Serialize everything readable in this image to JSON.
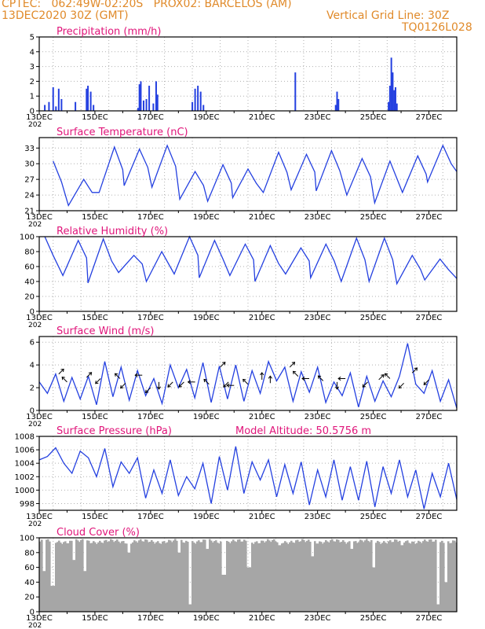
{
  "header": {
    "line1_left": "CPTEC:   062:49W-02:20S   PROX02: BARCELOS (AM)",
    "line2_left": "13DEC2020 30Z (GMT)",
    "line2_right": "Vertical Grid Line: 30Z",
    "line3_right": "TQ0126L028"
  },
  "colors": {
    "header": "#e08a2a",
    "panel_title": "#e0157a",
    "line": "#2440e0",
    "bar": "#2440e0",
    "cloud": "#a6a6a6",
    "grid": "#b0b0b0"
  },
  "x_tick_labels": [
    "13DEC",
    "15DEC",
    "17DEC",
    "19DEC",
    "21DEC",
    "23DEC",
    "25DEC",
    "27DEC"
  ],
  "x_year_label": "202",
  "chart_data": [
    {
      "type": "bar",
      "title": "Precipitation  (mm/h)",
      "ylim": [
        0,
        5
      ],
      "yticks": [
        0,
        1,
        2,
        3,
        4,
        5
      ],
      "x_unit": "days since 13DEC 00Z",
      "bars": [
        [
          0.2,
          0.4
        ],
        [
          0.35,
          0.6
        ],
        [
          0.5,
          1.6
        ],
        [
          0.6,
          0.3
        ],
        [
          0.7,
          1.5
        ],
        [
          0.8,
          0.8
        ],
        [
          1.3,
          0.6
        ],
        [
          1.7,
          1.5
        ],
        [
          1.75,
          1.7
        ],
        [
          1.85,
          1.3
        ],
        [
          1.95,
          0.4
        ],
        [
          3.55,
          0.2
        ],
        [
          3.6,
          1.8
        ],
        [
          3.65,
          2.0
        ],
        [
          3.75,
          0.7
        ],
        [
          3.85,
          0.8
        ],
        [
          3.95,
          1.7
        ],
        [
          4.1,
          0.5
        ],
        [
          4.2,
          2.0
        ],
        [
          4.25,
          1.1
        ],
        [
          5.5,
          0.6
        ],
        [
          5.6,
          1.5
        ],
        [
          5.7,
          1.7
        ],
        [
          5.8,
          1.3
        ],
        [
          5.9,
          0.4
        ],
        [
          9.2,
          2.6
        ],
        [
          10.65,
          0.4
        ],
        [
          10.7,
          1.3
        ],
        [
          10.75,
          0.8
        ],
        [
          12.55,
          0.6
        ],
        [
          12.6,
          1.7
        ],
        [
          12.65,
          3.6
        ],
        [
          12.7,
          2.6
        ],
        [
          12.75,
          1.4
        ],
        [
          12.8,
          1.6
        ],
        [
          12.85,
          0.5
        ]
      ]
    },
    {
      "type": "line",
      "title": "Surface Temperature (nC)",
      "ylim": [
        21,
        35
      ],
      "yticks": [
        21,
        24,
        27,
        30,
        33
      ],
      "period_hours": 24,
      "peak_days": [
        0.5,
        1.6,
        2.7,
        3.6,
        4.6,
        5.6,
        6.6,
        7.5,
        8.6,
        9.6,
        10.5,
        11.6,
        12.6,
        13.6,
        14.5
      ],
      "peaks": [
        30.5,
        27.0,
        33.2,
        32.8,
        33.5,
        28.5,
        29.8,
        29.0,
        32.2,
        31.8,
        32.5,
        31.0,
        30.5,
        31.5,
        33.5
      ],
      "troughs": [
        22.5,
        22.0,
        24.5,
        25.8,
        25.5,
        23.2,
        22.8,
        23.5,
        24.5,
        25.0,
        24.8,
        24.0,
        22.5,
        24.5,
        26.5
      ]
    },
    {
      "type": "line",
      "title": "Relative Humidity  (%)",
      "ylim": [
        0,
        100
      ],
      "yticks": [
        0,
        20,
        40,
        60,
        80,
        100
      ],
      "peak_days": [
        0.2,
        1.4,
        2.3,
        3.4,
        4.4,
        5.4,
        6.3,
        7.4,
        8.3,
        9.4,
        10.3,
        11.4,
        12.4,
        13.4,
        14.4
      ],
      "peaks": [
        100,
        95,
        97,
        75,
        80,
        100,
        95,
        90,
        88,
        85,
        90,
        98,
        98,
        75,
        70
      ],
      "troughs": [
        50,
        48,
        38,
        52,
        40,
        50,
        45,
        48,
        40,
        50,
        45,
        40,
        40,
        37,
        42
      ]
    },
    {
      "type": "line",
      "title": "Surface Wind  (m/s)",
      "ylim": [
        0,
        6.5
      ],
      "yticks": [
        0,
        2,
        4,
        6
      ],
      "values": [
        2.5,
        1.5,
        3.2,
        0.8,
        2.9,
        1.0,
        3.0,
        0.5,
        4.3,
        1.2,
        3.8,
        0.9,
        3.5,
        1.3,
        2.8,
        0.6,
        4.0,
        2.0,
        3.6,
        1.1,
        4.2,
        0.7,
        3.9,
        1.0,
        4.0,
        0.8,
        3.5,
        1.5,
        4.3,
        2.6,
        3.8,
        0.8,
        3.4,
        1.6,
        3.8,
        0.7,
        2.5,
        1.3,
        3.3,
        0.3,
        3.0,
        0.8,
        2.6,
        1.2,
        3.0,
        5.9,
        2.3,
        1.5,
        3.5,
        0.8,
        2.7,
        0.2
      ],
      "arrows": [
        [
          0.7,
          3.2,
          "ne"
        ],
        [
          1.0,
          2.5,
          "nw"
        ],
        [
          1.7,
          2.9,
          "ne"
        ],
        [
          2.2,
          2.8,
          "sw"
        ],
        [
          2.9,
          2.8,
          "nw"
        ],
        [
          3.1,
          2.4,
          "sw"
        ],
        [
          3.7,
          3.1,
          "w"
        ],
        [
          4.0,
          2.0,
          "sw"
        ],
        [
          4.3,
          2.5,
          "s"
        ],
        [
          4.8,
          2.5,
          "sw"
        ],
        [
          5.2,
          2.5,
          "sw"
        ],
        [
          5.6,
          2.5,
          "w"
        ],
        [
          6.1,
          2.3,
          "nw"
        ],
        [
          6.5,
          3.8,
          "ne"
        ],
        [
          6.8,
          2.5,
          "sw"
        ],
        [
          7.0,
          2.2,
          "w"
        ],
        [
          7.5,
          2.3,
          "nw"
        ],
        [
          8.0,
          2.7,
          "n"
        ],
        [
          8.3,
          2.4,
          "n"
        ],
        [
          9.0,
          3.8,
          "ne"
        ],
        [
          9.3,
          3.0,
          "nw"
        ],
        [
          9.7,
          2.8,
          "w"
        ],
        [
          10.2,
          2.6,
          "nw"
        ],
        [
          10.7,
          2.5,
          "s"
        ],
        [
          11.0,
          2.8,
          "w"
        ],
        [
          11.8,
          2.5,
          "sw"
        ],
        [
          12.2,
          2.7,
          "ne"
        ],
        [
          12.6,
          2.8,
          "nw"
        ],
        [
          13.1,
          2.4,
          "sw"
        ],
        [
          13.4,
          3.3,
          "ne"
        ],
        [
          14.0,
          2.7,
          "sw"
        ]
      ]
    },
    {
      "type": "line",
      "title": "Surface Pressure (hPa)",
      "annotation": "Model Altitude: 50.5756  m",
      "ylim": [
        997,
        1008
      ],
      "yticks": [
        998,
        1000,
        1002,
        1004,
        1006,
        1008
      ],
      "values": [
        1004.5,
        1005.0,
        1006.3,
        1004.0,
        1002.5,
        1005.8,
        1004.8,
        1002.0,
        1006.2,
        1000.5,
        1004.2,
        1002.5,
        1004.8,
        998.8,
        1003.0,
        999.5,
        1004.5,
        999.2,
        1002.0,
        1000.2,
        1004.0,
        998.0,
        1005.0,
        1000.0,
        1006.5,
        999.5,
        1004.2,
        1001.5,
        1004.5,
        999.0,
        1003.8,
        999.5,
        1004.2,
        997.8,
        1003.0,
        999.0,
        1004.5,
        998.5,
        1003.5,
        998.5,
        1004.3,
        997.5,
        1003.5,
        999.5,
        1004.5,
        999.0,
        1003.0,
        997.2,
        1002.5,
        999.0,
        1004.0,
        998.6
      ]
    },
    {
      "type": "bar",
      "title": "Cloud Cover (%)",
      "ylim": [
        0,
        100
      ],
      "yticks": [
        0,
        20,
        40,
        60,
        80,
        100
      ],
      "base_level": 95,
      "dips": [
        [
          0.15,
          55
        ],
        [
          0.45,
          35
        ],
        [
          1.2,
          70
        ],
        [
          1.6,
          55
        ],
        [
          3.2,
          80
        ],
        [
          5.0,
          80
        ],
        [
          5.4,
          10
        ],
        [
          6.0,
          85
        ],
        [
          6.6,
          50
        ],
        [
          7.5,
          60
        ],
        [
          8.6,
          90
        ],
        [
          9.8,
          75
        ],
        [
          11.2,
          85
        ],
        [
          12.0,
          60
        ],
        [
          13.0,
          90
        ],
        [
          14.3,
          10
        ],
        [
          14.6,
          40
        ]
      ]
    }
  ]
}
